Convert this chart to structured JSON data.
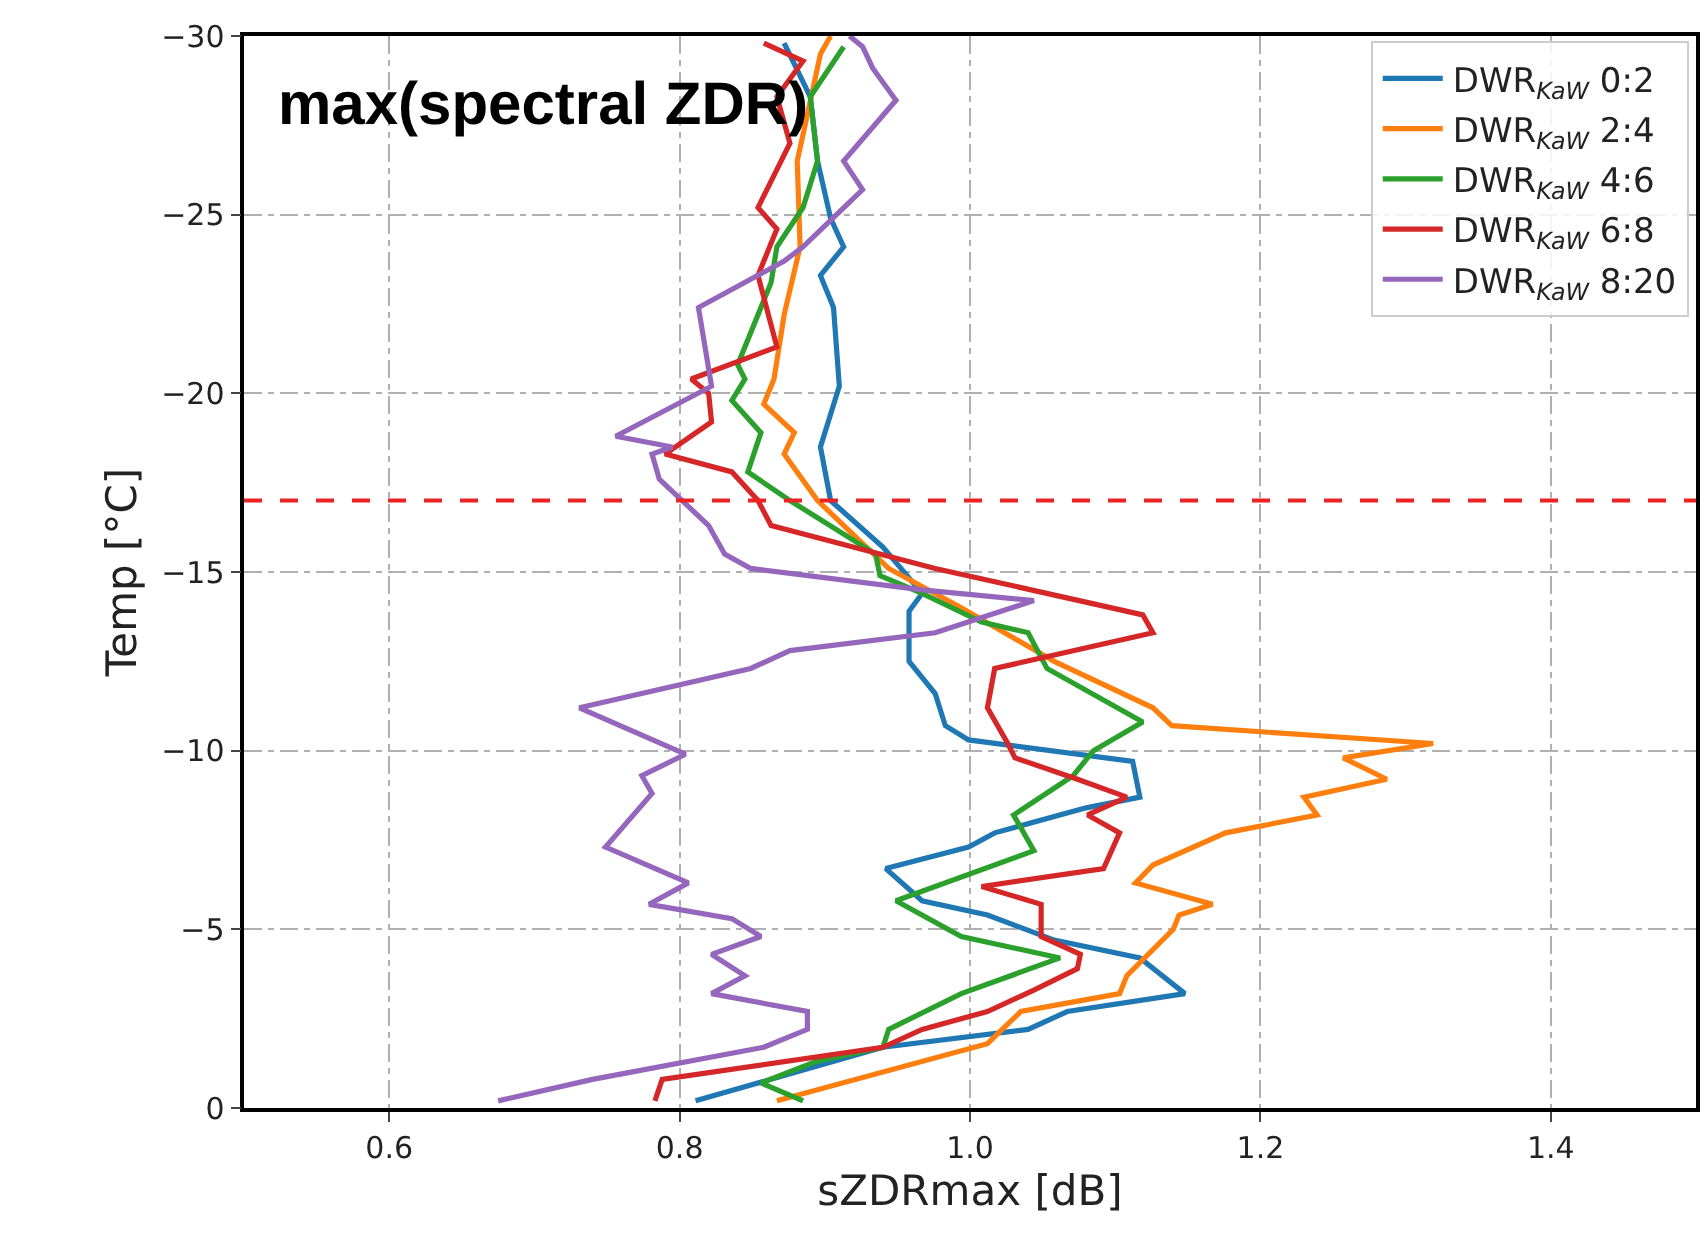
{
  "chart_data": {
    "type": "line",
    "title": "max(spectral ZDR)",
    "xlabel": "sZDRmax [dB]",
    "ylabel": "Temp [°C]",
    "xlim": [
      0.5,
      1.5
    ],
    "xticks": [
      {
        "value": 0.6,
        "label": "0.6"
      },
      {
        "value": 0.8,
        "label": "0.8"
      },
      {
        "value": 1.0,
        "label": "1.0"
      },
      {
        "value": 1.2,
        "label": "1.2"
      },
      {
        "value": 1.4,
        "label": "1.4"
      }
    ],
    "ylim": [
      0,
      -30
    ],
    "yticks": [
      0,
      {
        "value": -5,
        "label": "−5"
      },
      {
        "value": -10,
        "label": "−10"
      },
      {
        "value": -15,
        "label": "−15"
      },
      {
        "value": -20,
        "label": "−20"
      },
      {
        "value": -25,
        "label": "−25"
      },
      {
        "value": -30,
        "label": "−30"
      }
    ],
    "grid": true,
    "legend": "top right",
    "line_style": "solid",
    "marker": "none",
    "ref_lines": [
      {
        "axis": "y",
        "value": -17,
        "color": "#ee2222",
        "line_style": "dashed"
      }
    ],
    "series": [
      {
        "name": "DWR$_{KaW}$ 0:2",
        "color": "#1f77b4",
        "x": [
          0.811,
          0.94,
          1.04,
          1.067,
          1.148,
          1.117,
          1.058,
          1.012,
          0.967,
          0.942,
          0.999,
          1.017,
          1.08,
          1.117,
          1.112,
          0.999,
          0.983,
          0.976,
          0.958,
          0.958,
          0.967,
          0.94,
          0.904,
          0.897,
          0.91,
          0.906,
          0.897,
          0.913,
          0.904,
          0.895,
          0.89,
          0.872
        ],
        "values": [
          -0.2,
          -1.7,
          -2.2,
          -2.7,
          -3.2,
          -4.2,
          -4.7,
          -5.4,
          -5.8,
          -6.7,
          -7.3,
          -7.7,
          -8.4,
          -8.7,
          -9.7,
          -10.3,
          -10.7,
          -11.6,
          -12.5,
          -13.9,
          -14.4,
          -15.7,
          -17.0,
          -18.5,
          -20.2,
          -22.4,
          -23.3,
          -24.1,
          -24.9,
          -26.5,
          -28.3,
          -29.8
        ]
      },
      {
        "name": "DWR$_{KaW}$ 2:4",
        "color": "#ff7f0e",
        "x": [
          0.867,
          1.012,
          1.035,
          1.103,
          1.108,
          1.14,
          1.144,
          1.167,
          1.114,
          1.126,
          1.176,
          1.239,
          1.23,
          1.287,
          1.257,
          1.319,
          1.139,
          1.126,
          1.058,
          0.994,
          0.944,
          0.895,
          0.872,
          0.879,
          0.858,
          0.865,
          0.872,
          0.883,
          0.881,
          0.888,
          0.897,
          0.904
        ],
        "values": [
          -0.2,
          -1.8,
          -2.7,
          -3.2,
          -3.7,
          -5.0,
          -5.4,
          -5.7,
          -6.3,
          -6.8,
          -7.7,
          -8.2,
          -8.7,
          -9.2,
          -9.8,
          -10.2,
          -10.7,
          -11.2,
          -12.5,
          -14.0,
          -15.1,
          -17.0,
          -18.3,
          -18.9,
          -19.7,
          -20.4,
          -22.2,
          -24.1,
          -26.5,
          -27.8,
          -29.5,
          -30.0
        ]
      },
      {
        "name": "DWR$_{KaW}$ 4:6",
        "color": "#2ca02c",
        "x": [
          0.885,
          0.856,
          0.894,
          0.94,
          0.944,
          0.994,
          1.062,
          0.994,
          0.949,
          1.044,
          1.03,
          1.071,
          1.085,
          1.119,
          1.053,
          1.04,
          1.008,
          0.967,
          0.938,
          0.935,
          0.876,
          0.847,
          0.856,
          0.836,
          0.845,
          0.84,
          0.863,
          0.867,
          0.885,
          0.895,
          0.89,
          0.913
        ],
        "values": [
          -0.2,
          -0.7,
          -1.3,
          -1.7,
          -2.2,
          -3.2,
          -4.2,
          -4.8,
          -5.8,
          -7.2,
          -8.2,
          -9.3,
          -10.0,
          -10.8,
          -12.3,
          -13.3,
          -13.6,
          -14.4,
          -14.9,
          -15.5,
          -17.0,
          -17.8,
          -18.9,
          -19.8,
          -20.4,
          -20.8,
          -23.1,
          -24.1,
          -25.2,
          -26.5,
          -28.3,
          -29.7
        ]
      },
      {
        "name": "DWR$_{KaW}$ 6:8",
        "color": "#d62728",
        "x": [
          0.783,
          0.788,
          0.94,
          0.967,
          1.012,
          1.044,
          1.074,
          1.076,
          1.049,
          1.049,
          1.008,
          1.092,
          1.103,
          1.081,
          1.108,
          1.074,
          1.031,
          1.026,
          1.012,
          1.017,
          1.126,
          1.119,
          0.976,
          0.863,
          0.854,
          0.836,
          0.79,
          0.822,
          0.82,
          0.808,
          0.867,
          0.854,
          0.867,
          0.854,
          0.876,
          0.867,
          0.885,
          0.858
        ],
        "values": [
          -0.2,
          -0.8,
          -1.7,
          -2.2,
          -2.7,
          -3.3,
          -3.9,
          -4.3,
          -4.8,
          -5.7,
          -6.2,
          -6.7,
          -7.7,
          -8.2,
          -8.7,
          -9.2,
          -9.8,
          -10.2,
          -11.2,
          -12.3,
          -13.3,
          -13.8,
          -15.1,
          -16.3,
          -17.0,
          -17.8,
          -18.3,
          -19.2,
          -20.0,
          -20.4,
          -21.3,
          -23.3,
          -24.6,
          -25.2,
          -27.0,
          -28.3,
          -29.3,
          -29.8
        ]
      },
      {
        "name": "DWR$_{KaW}$ 8:20",
        "color": "#9467bd",
        "x": [
          0.675,
          0.74,
          0.858,
          0.888,
          0.888,
          0.822,
          0.845,
          0.822,
          0.856,
          0.836,
          0.779,
          0.806,
          0.749,
          0.781,
          0.774,
          0.804,
          0.731,
          0.849,
          0.876,
          0.976,
          1.044,
          0.967,
          0.849,
          0.831,
          0.82,
          0.786,
          0.781,
          0.795,
          0.756,
          0.822,
          0.813,
          0.872,
          0.885,
          0.926,
          0.913,
          0.949,
          0.933,
          0.926,
          0.917
        ],
        "values": [
          -0.2,
          -0.8,
          -1.7,
          -2.2,
          -2.7,
          -3.2,
          -3.7,
          -4.3,
          -4.8,
          -5.3,
          -5.7,
          -6.3,
          -7.3,
          -8.8,
          -9.3,
          -9.9,
          -11.2,
          -12.3,
          -12.8,
          -13.3,
          -14.2,
          -14.5,
          -15.1,
          -15.5,
          -16.3,
          -17.6,
          -18.3,
          -18.5,
          -18.8,
          -20.2,
          -22.4,
          -23.7,
          -24.1,
          -25.7,
          -26.5,
          -28.2,
          -29.1,
          -29.7,
          -30.0
        ]
      }
    ]
  }
}
